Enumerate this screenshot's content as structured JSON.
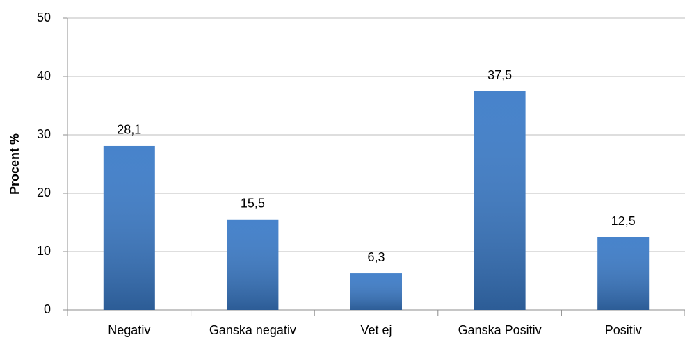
{
  "chart_data": {
    "type": "bar",
    "y_label": "Procent %",
    "categories": [
      "Negativ",
      "Ganska negativ",
      "Vet ej",
      "Ganska Positiv",
      "Positiv"
    ],
    "values": [
      28.1,
      15.5,
      6.3,
      37.5,
      12.5
    ],
    "value_labels": [
      "28,1",
      "15,5",
      "6,3",
      "37,5",
      "12,5"
    ],
    "color": "#3b7bc8",
    "ylim": [
      0,
      50
    ],
    "yticks": [
      0,
      10,
      20,
      30,
      40,
      50
    ],
    "grid": true
  }
}
